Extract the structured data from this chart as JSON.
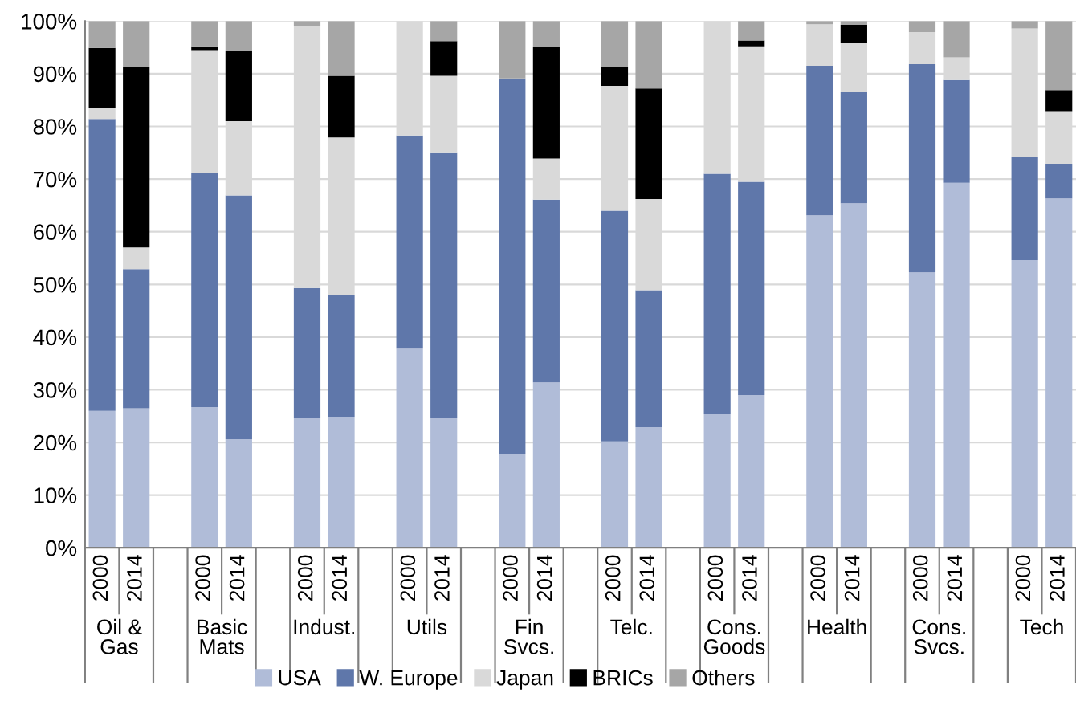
{
  "chart_data": {
    "type": "bar",
    "stacked": true,
    "categories": [
      "2000",
      "2014",
      null,
      "2000",
      "2014",
      null,
      "2000",
      "2014",
      null,
      "2000",
      "2014",
      null,
      "2000",
      "2014",
      null,
      "2000",
      "2014",
      null,
      "2000",
      "2014",
      null,
      "2000",
      "2014",
      null,
      "2000",
      "2014",
      null,
      "2000",
      "2014"
    ],
    "series": [
      {
        "name": "USA",
        "color": "#b0bcd8",
        "values": [
          26.0,
          26.5,
          null,
          26.7,
          20.6,
          null,
          24.7,
          24.9,
          null,
          37.8,
          24.6,
          null,
          17.8,
          31.4,
          null,
          20.2,
          22.9,
          null,
          25.5,
          29.0,
          null,
          63.1,
          65.4,
          null,
          52.3,
          69.3,
          null,
          54.6,
          66.3
        ]
      },
      {
        "name": "W. Europe",
        "color": "#5f77aa",
        "values": [
          55.4,
          26.4,
          null,
          44.5,
          46.3,
          null,
          24.6,
          23.1,
          null,
          40.5,
          50.5,
          null,
          71.3,
          34.7,
          null,
          43.8,
          26.0,
          null,
          45.5,
          40.5,
          null,
          28.4,
          21.2,
          null,
          39.5,
          19.5,
          null,
          19.6,
          6.6
        ]
      },
      {
        "name": "Japan",
        "color": "#d9d9d9",
        "values": [
          2.2,
          4.1,
          null,
          23.3,
          14.1,
          null,
          49.7,
          29.9,
          null,
          21.7,
          14.5,
          null,
          0,
          7.8,
          null,
          23.7,
          17.3,
          null,
          29.0,
          25.7,
          null,
          7.9,
          9.2,
          null,
          6.1,
          4.3,
          null,
          24.4,
          10.0
        ]
      },
      {
        "name": "BRICs",
        "color": "#000000",
        "values": [
          11.3,
          34.3,
          null,
          0.7,
          13.3,
          null,
          0,
          11.7,
          null,
          0,
          6.6,
          null,
          0,
          21.2,
          null,
          3.5,
          21.0,
          null,
          0,
          1.1,
          null,
          0,
          3.5,
          null,
          0,
          0,
          null,
          0,
          4.0
        ]
      },
      {
        "name": "Others",
        "color": "#a6a6a6",
        "values": [
          5.1,
          8.7,
          null,
          4.8,
          5.7,
          null,
          1.0,
          10.4,
          null,
          0,
          3.8,
          null,
          10.9,
          4.9,
          null,
          8.8,
          12.8,
          null,
          0,
          3.7,
          null,
          0.6,
          0.7,
          null,
          2.1,
          6.9,
          null,
          1.4,
          13.1
        ]
      }
    ],
    "annotations": [
      "Oil &\nGas",
      "Basic\nMats",
      "Indust.",
      "Utils",
      "Fin\nSvcs.",
      "Telc.",
      "Cons.\nGoods",
      "Health",
      "Cons.\nSvcs.",
      "Tech"
    ],
    "ylim": [
      0,
      100
    ],
    "yticks": [
      {
        "value": 0,
        "label": "0%"
      },
      {
        "value": 10,
        "label": "10%"
      },
      {
        "value": 20,
        "label": "20%"
      },
      {
        "value": 30,
        "label": "30%"
      },
      {
        "value": 40,
        "label": "40%"
      },
      {
        "value": 50,
        "label": "50%"
      },
      {
        "value": 60,
        "label": "60%"
      },
      {
        "value": 70,
        "label": "70%"
      },
      {
        "value": 80,
        "label": "80%"
      },
      {
        "value": 90,
        "label": "90%"
      },
      {
        "value": 100,
        "label": "100%"
      }
    ],
    "grid": "y",
    "legend": "bottom"
  }
}
